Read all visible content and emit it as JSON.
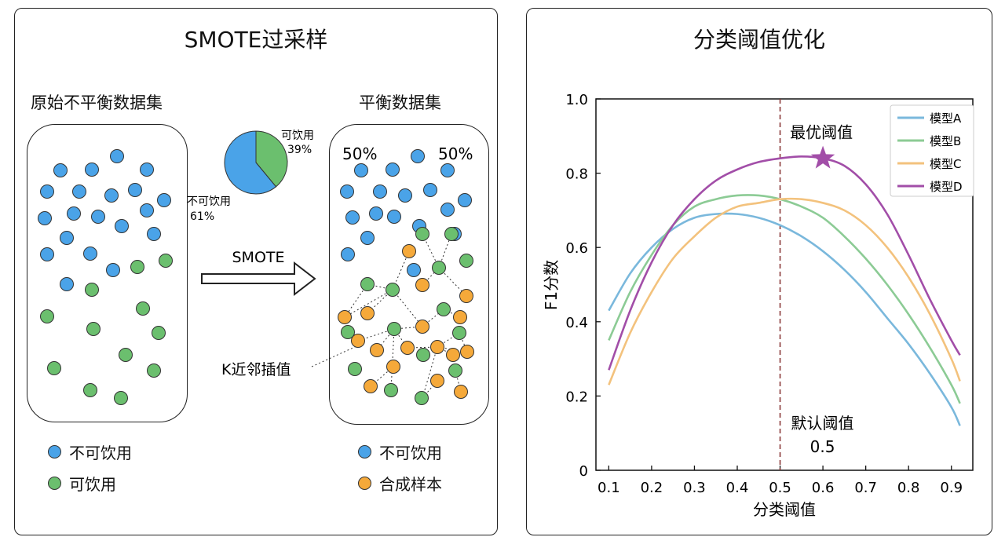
{
  "colors": {
    "blue": "#4aa3e8",
    "green": "#6bbf6e",
    "orange": "#f5a93a",
    "arrow": "#222"
  },
  "left": {
    "title": "SMOTE过采样",
    "original_label": "原始不平衡数据集",
    "balanced_label": "平衡数据集",
    "pie": {
      "slices": [
        {
          "label": "不可饮用",
          "pct": "61%",
          "value": 61,
          "color": "#4aa3e8"
        },
        {
          "label": "可饮用",
          "pct": "39%",
          "value": 39,
          "color": "#6bbf6e"
        }
      ]
    },
    "pct_left": "50%",
    "pct_right": "50%",
    "arrow_label": "SMOTE",
    "knn_label": "K近邻插值",
    "legend_left": [
      {
        "label": "不可饮用",
        "color": "#4aa3e8"
      },
      {
        "label": "可饮用",
        "color": "#6bbf6e"
      }
    ],
    "legend_right": [
      {
        "label": "不可饮用",
        "color": "#4aa3e8"
      },
      {
        "label": "合成样本",
        "color": "#f5a93a"
      }
    ]
  },
  "right": {
    "title": "分类阈值优化",
    "chart_data": {
      "type": "line",
      "xlabel": "分类阈值",
      "ylabel": "F1分数",
      "xlim": [
        0.07,
        0.95
      ],
      "ylim": [
        0,
        1.0
      ],
      "xticks": [
        "0.1",
        "0.2",
        "0.3",
        "0.4",
        "0.5",
        "0.6",
        "0.7",
        "0.8",
        "0.9"
      ],
      "yticks": [
        "0",
        "0.2",
        "0.4",
        "0.6",
        "0.8",
        "1.0"
      ],
      "legend_position": "top-right",
      "series": [
        {
          "name": "模型A",
          "color": "#7ab8dc",
          "x": [
            0.1,
            0.15,
            0.2,
            0.25,
            0.3,
            0.35,
            0.4,
            0.45,
            0.5,
            0.55,
            0.6,
            0.65,
            0.7,
            0.75,
            0.8,
            0.85,
            0.9,
            0.92
          ],
          "y": [
            0.43,
            0.53,
            0.6,
            0.65,
            0.68,
            0.69,
            0.69,
            0.68,
            0.66,
            0.63,
            0.59,
            0.54,
            0.48,
            0.41,
            0.34,
            0.26,
            0.17,
            0.12
          ]
        },
        {
          "name": "模型B",
          "color": "#8ccb95",
          "x": [
            0.1,
            0.15,
            0.2,
            0.25,
            0.3,
            0.35,
            0.4,
            0.45,
            0.5,
            0.55,
            0.6,
            0.65,
            0.7,
            0.75,
            0.8,
            0.85,
            0.9,
            0.92
          ],
          "y": [
            0.35,
            0.48,
            0.58,
            0.66,
            0.71,
            0.73,
            0.74,
            0.74,
            0.73,
            0.71,
            0.68,
            0.63,
            0.57,
            0.5,
            0.42,
            0.33,
            0.23,
            0.18
          ]
        },
        {
          "name": "模型C",
          "color": "#f3c27d",
          "x": [
            0.1,
            0.15,
            0.2,
            0.25,
            0.3,
            0.35,
            0.4,
            0.45,
            0.5,
            0.55,
            0.6,
            0.65,
            0.7,
            0.75,
            0.8,
            0.85,
            0.9,
            0.92
          ],
          "y": [
            0.23,
            0.37,
            0.48,
            0.57,
            0.63,
            0.68,
            0.71,
            0.72,
            0.73,
            0.73,
            0.72,
            0.7,
            0.66,
            0.6,
            0.52,
            0.42,
            0.3,
            0.24
          ]
        },
        {
          "name": "模型D",
          "color": "#a24ea8",
          "x": [
            0.1,
            0.15,
            0.2,
            0.25,
            0.3,
            0.35,
            0.4,
            0.45,
            0.5,
            0.55,
            0.6,
            0.65,
            0.7,
            0.75,
            0.8,
            0.85,
            0.9,
            0.92
          ],
          "y": [
            0.27,
            0.43,
            0.56,
            0.66,
            0.73,
            0.78,
            0.81,
            0.83,
            0.84,
            0.845,
            0.84,
            0.82,
            0.77,
            0.69,
            0.58,
            0.46,
            0.35,
            0.31
          ]
        }
      ],
      "vline": {
        "x": 0.5,
        "label": "默认阈值",
        "value_label": "0.5"
      },
      "best": {
        "x": 0.6,
        "y": 0.84,
        "label": "最优阈值"
      }
    }
  }
}
